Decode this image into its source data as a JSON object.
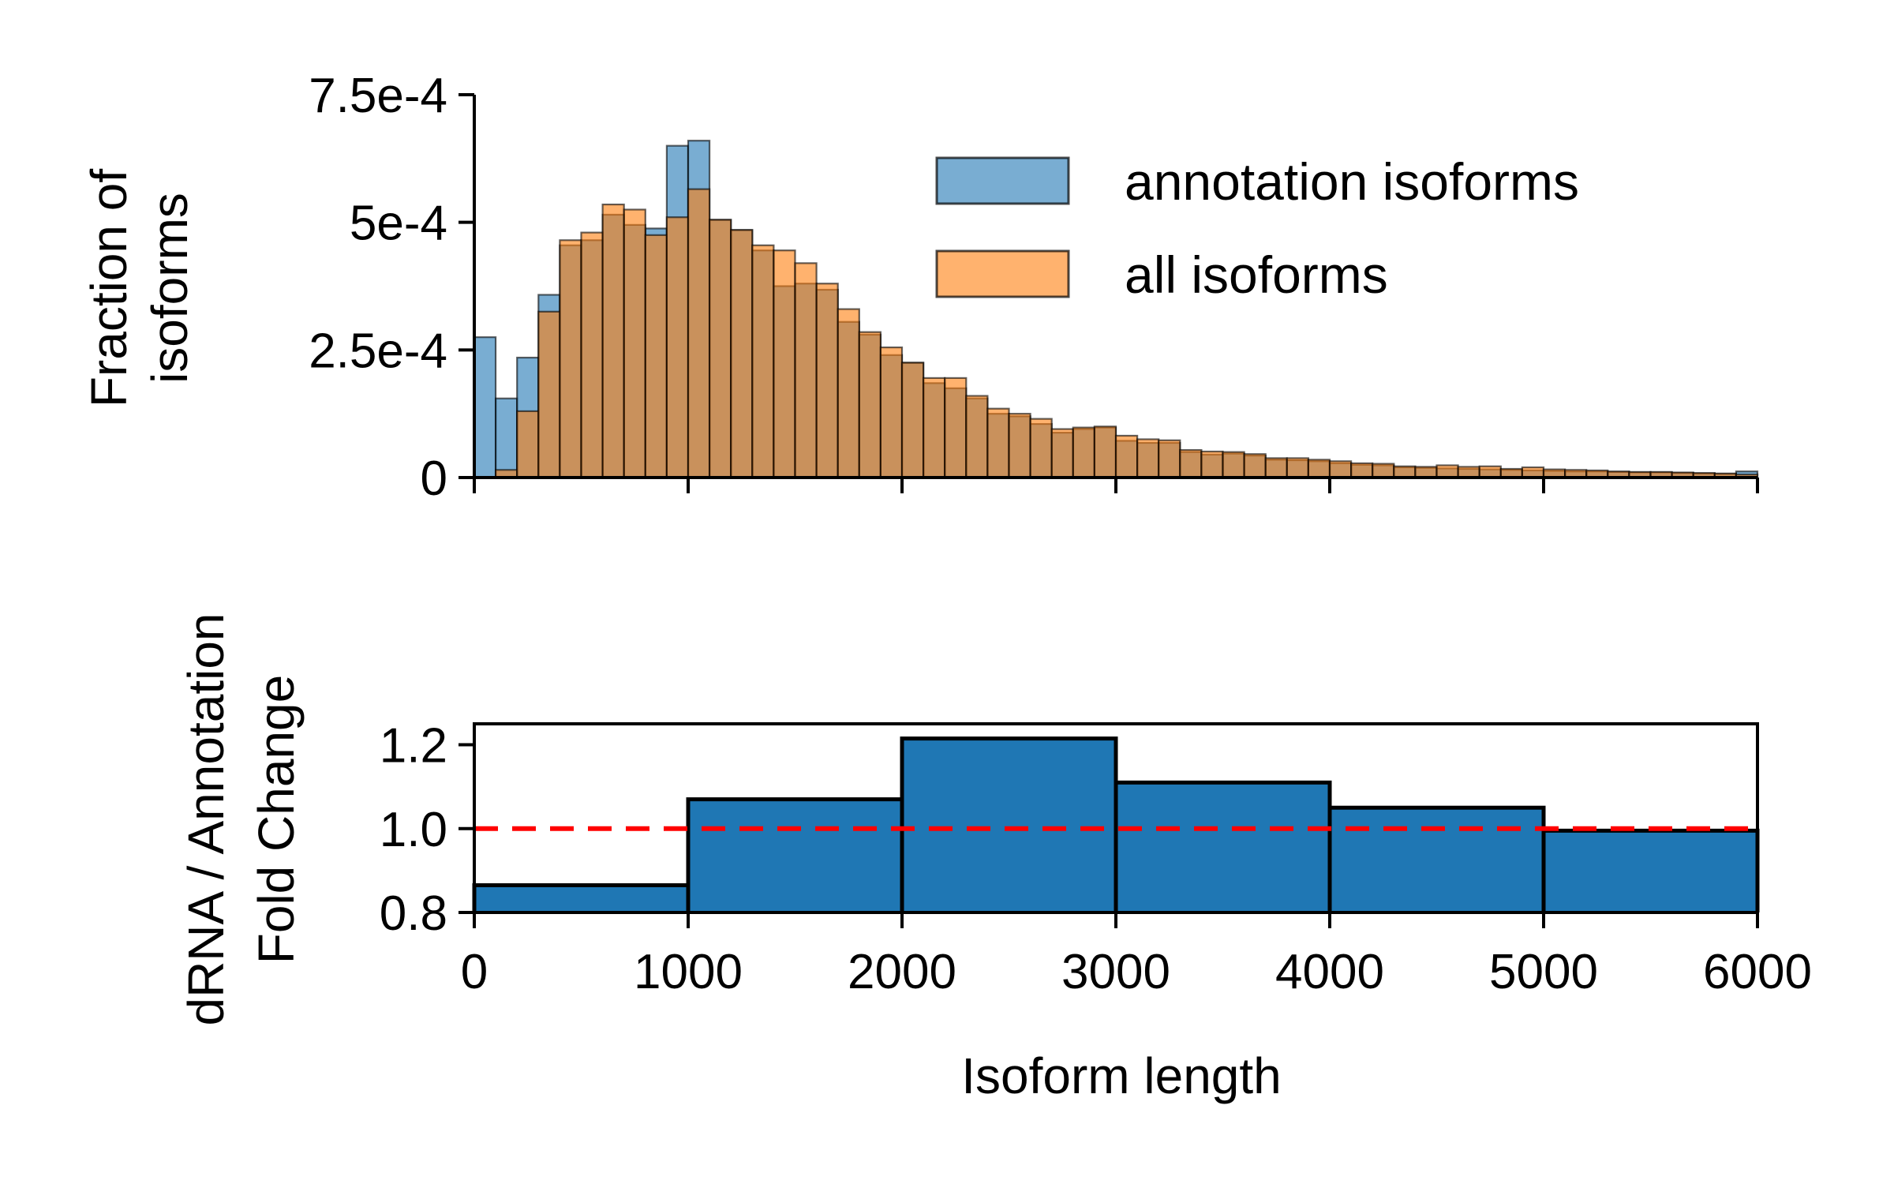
{
  "chart_data": [
    {
      "type": "bar",
      "subtype": "overlaid-histogram",
      "ylabel_lines": [
        "Fraction of",
        "isoforms"
      ],
      "xlim": [
        0,
        6000
      ],
      "ylim": [
        0,
        0.00075
      ],
      "bin_width": 100,
      "x_ticks": [
        0,
        1000,
        2000,
        3000,
        4000,
        5000,
        6000
      ],
      "x_tick_labels_shown": false,
      "y_ticks": [
        0,
        0.00025,
        0.0005,
        0.00075
      ],
      "y_tick_labels": [
        "0",
        "2.5e-4",
        "5e-4",
        "7.5e-4"
      ],
      "legend_position": "top-right",
      "series": [
        {
          "name": "annotation isoforms",
          "color": "#1f77b4",
          "values": [
            0.000275,
            0.000155,
            0.000235,
            0.000358,
            0.000455,
            0.000465,
            0.000515,
            0.000495,
            0.000488,
            0.00065,
            0.00066,
            0.000505,
            0.000485,
            0.000445,
            0.000375,
            0.00038,
            0.000368,
            0.000305,
            0.00028,
            0.00024,
            0.000225,
            0.000185,
            0.000175,
            0.000155,
            0.000125,
            0.00012,
            0.000105,
            8.8e-05,
            9.5e-05,
            9.8e-05,
            7.2e-05,
            6.8e-05,
            6.8e-05,
            5e-05,
            4.5e-05,
            4.7e-05,
            4.3e-05,
            3.5e-05,
            3.4e-05,
            3.2e-05,
            2.8e-05,
            2.5e-05,
            2.4e-05,
            2e-05,
            1.9e-05,
            1.8e-05,
            1.7e-05,
            1.6e-05,
            1.5e-05,
            1.4e-05,
            1.3e-05,
            1.2e-05,
            1.2e-05,
            1.1e-05,
            1e-05,
            1e-05,
            9e-06,
            8e-06,
            7e-06,
            1.2e-05
          ]
        },
        {
          "name": "all isoforms",
          "color": "#ff7f0e",
          "values": [
            0,
            1.5e-05,
            0.00013,
            0.000325,
            0.000465,
            0.00048,
            0.000535,
            0.000525,
            0.000475,
            0.00051,
            0.000565,
            0.000505,
            0.000485,
            0.000455,
            0.000445,
            0.00042,
            0.00038,
            0.00033,
            0.000285,
            0.000255,
            0.000225,
            0.000195,
            0.000195,
            0.00016,
            0.000135,
            0.000125,
            0.000115,
            9.5e-05,
            9.8e-05,
            0.0001,
            8.2e-05,
            7.5e-05,
            7.3e-05,
            5.4e-05,
            5.1e-05,
            5e-05,
            4.6e-05,
            3.8e-05,
            3.8e-05,
            3.5e-05,
            3.2e-05,
            2.8e-05,
            2.7e-05,
            2.2e-05,
            2.1e-05,
            2.4e-05,
            2.1e-05,
            2.2e-05,
            1.7e-05,
            2e-05,
            1.6e-05,
            1.5e-05,
            1.4e-05,
            1.2e-05,
            1.1e-05,
            1.1e-05,
            1e-05,
            9e-06,
            8e-06,
            6e-06
          ]
        }
      ]
    },
    {
      "type": "bar",
      "subtype": "step-histogram",
      "ylabel_lines": [
        "dRNA / Annotation",
        "Fold Change"
      ],
      "xlabel": "Isoform length",
      "xlim": [
        0,
        6000
      ],
      "ylim": [
        0.8,
        1.25
      ],
      "x_ticks": [
        0,
        1000,
        2000,
        3000,
        4000,
        5000,
        6000
      ],
      "x_tick_labels": [
        "0",
        "1000",
        "2000",
        "3000",
        "4000",
        "5000",
        "6000"
      ],
      "y_ticks": [
        0.8,
        1.0,
        1.2
      ],
      "y_tick_labels": [
        "0.8",
        "1.0",
        "1.2"
      ],
      "bin_edges": [
        0,
        1000,
        2000,
        3000,
        4000,
        5000,
        6000
      ],
      "values": [
        0.865,
        1.07,
        1.215,
        1.11,
        1.05,
        0.995
      ],
      "bar_color": "#1f77b4",
      "reference_line": {
        "y": 1.0,
        "color": "#ff0000",
        "style": "dashed"
      }
    }
  ]
}
